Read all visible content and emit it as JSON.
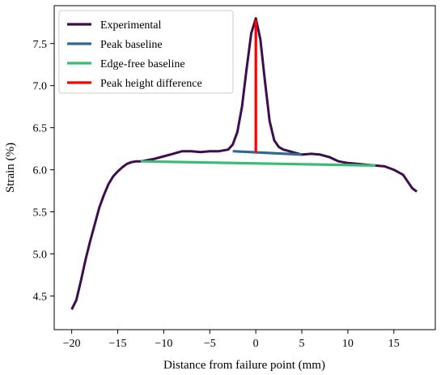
{
  "chart_data": {
    "type": "line",
    "xlabel": "Distance from failure point (mm)",
    "ylabel": "Strain (%)",
    "xlim": [
      -21.9,
      19.5
    ],
    "ylim": [
      4.1,
      7.95
    ],
    "xticks": [
      -20,
      -15,
      -10,
      -5,
      0,
      5,
      10,
      15
    ],
    "yticks": [
      4.5,
      5.0,
      5.5,
      6.0,
      6.5,
      7.0,
      7.5
    ],
    "xtick_labels": [
      "−20",
      "−15",
      "−10",
      "−5",
      "0",
      "5",
      "10",
      "15"
    ],
    "ytick_labels": [
      "4.5",
      "5.0",
      "5.5",
      "6.0",
      "6.5",
      "7.0",
      "7.5"
    ],
    "grid": false,
    "legend_position": "upper-left",
    "series": [
      {
        "name": "Experimental",
        "color": "#3d0d4e",
        "x": [
          -20.0,
          -19.5,
          -19.0,
          -18.5,
          -18.0,
          -17.5,
          -17.0,
          -16.5,
          -16.0,
          -15.5,
          -15.0,
          -14.5,
          -14.0,
          -13.5,
          -13.0,
          -12.5,
          -12.0,
          -11.0,
          -10.0,
          -9.0,
          -8.0,
          -7.0,
          -6.0,
          -5.0,
          -4.0,
          -3.0,
          -2.5,
          -2.0,
          -1.5,
          -1.0,
          -0.5,
          0.0,
          0.5,
          1.0,
          1.5,
          2.0,
          2.5,
          3.0,
          4.0,
          5.0,
          6.0,
          7.0,
          8.0,
          9.0,
          10.0,
          11.0,
          12.0,
          13.0,
          14.0,
          15.0,
          16.0,
          17.0,
          17.5
        ],
        "y": [
          4.34,
          4.45,
          4.68,
          4.93,
          5.15,
          5.35,
          5.55,
          5.7,
          5.83,
          5.92,
          5.98,
          6.03,
          6.07,
          6.09,
          6.1,
          6.1,
          6.11,
          6.13,
          6.16,
          6.19,
          6.22,
          6.22,
          6.21,
          6.22,
          6.22,
          6.24,
          6.3,
          6.45,
          6.75,
          7.2,
          7.62,
          7.8,
          7.55,
          7.05,
          6.58,
          6.35,
          6.27,
          6.24,
          6.21,
          6.18,
          6.19,
          6.18,
          6.15,
          6.1,
          6.08,
          6.07,
          6.06,
          6.05,
          6.04,
          6.0,
          5.94,
          5.78,
          5.74
        ]
      },
      {
        "name": "Peak baseline",
        "color": "#2f6893",
        "x": [
          -2.5,
          5.0
        ],
        "y": [
          6.22,
          6.18
        ]
      },
      {
        "name": "Edge-free baseline",
        "color": "#3cbb75",
        "x": [
          -12.5,
          13.0
        ],
        "y": [
          6.1,
          6.05
        ]
      },
      {
        "name": "Peak height difference",
        "color": "#ff0000",
        "x": [
          0.0,
          0.0
        ],
        "y": [
          6.2,
          7.78
        ]
      }
    ]
  }
}
